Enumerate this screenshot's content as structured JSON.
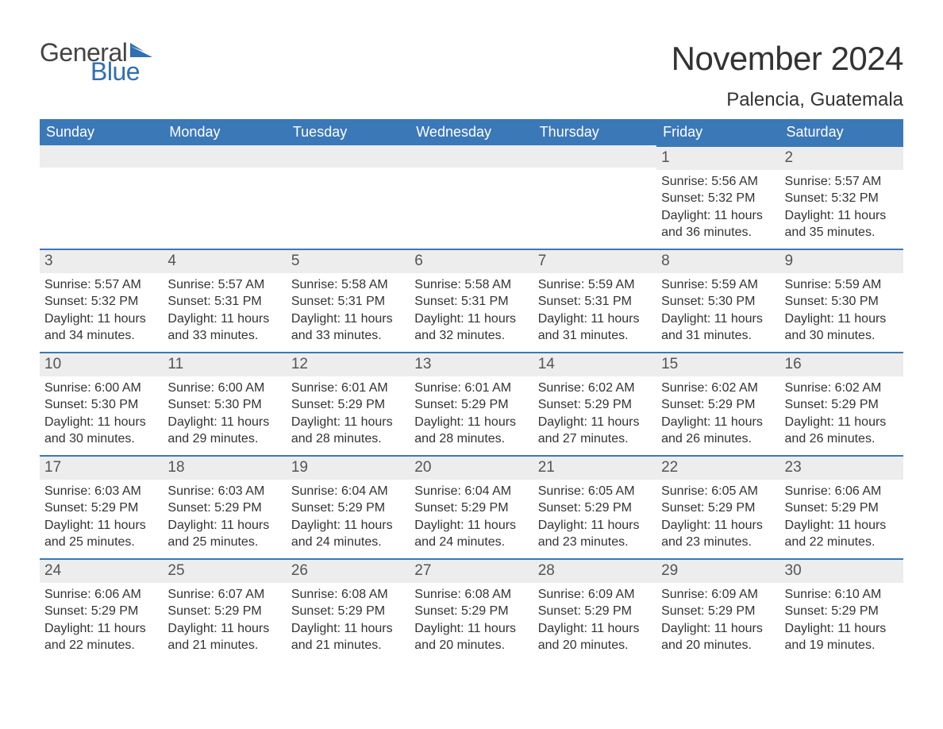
{
  "brand": {
    "word1": "General",
    "word2": "Blue",
    "accent_color": "#2f6fb3"
  },
  "title": "November 2024",
  "location": "Palencia, Guatemala",
  "colors": {
    "header_bg": "#3b78b8",
    "header_text": "#ffffff",
    "daybar_bg": "#ededed",
    "daybar_border": "#3b78b8",
    "text": "#333333"
  },
  "weekdays": [
    "Sunday",
    "Monday",
    "Tuesday",
    "Wednesday",
    "Thursday",
    "Friday",
    "Saturday"
  ],
  "weeks": [
    [
      null,
      null,
      null,
      null,
      null,
      {
        "n": "1",
        "sunrise": "Sunrise: 5:56 AM",
        "sunset": "Sunset: 5:32 PM",
        "dl1": "Daylight: 11 hours",
        "dl2": "and 36 minutes."
      },
      {
        "n": "2",
        "sunrise": "Sunrise: 5:57 AM",
        "sunset": "Sunset: 5:32 PM",
        "dl1": "Daylight: 11 hours",
        "dl2": "and 35 minutes."
      }
    ],
    [
      {
        "n": "3",
        "sunrise": "Sunrise: 5:57 AM",
        "sunset": "Sunset: 5:32 PM",
        "dl1": "Daylight: 11 hours",
        "dl2": "and 34 minutes."
      },
      {
        "n": "4",
        "sunrise": "Sunrise: 5:57 AM",
        "sunset": "Sunset: 5:31 PM",
        "dl1": "Daylight: 11 hours",
        "dl2": "and 33 minutes."
      },
      {
        "n": "5",
        "sunrise": "Sunrise: 5:58 AM",
        "sunset": "Sunset: 5:31 PM",
        "dl1": "Daylight: 11 hours",
        "dl2": "and 33 minutes."
      },
      {
        "n": "6",
        "sunrise": "Sunrise: 5:58 AM",
        "sunset": "Sunset: 5:31 PM",
        "dl1": "Daylight: 11 hours",
        "dl2": "and 32 minutes."
      },
      {
        "n": "7",
        "sunrise": "Sunrise: 5:59 AM",
        "sunset": "Sunset: 5:31 PM",
        "dl1": "Daylight: 11 hours",
        "dl2": "and 31 minutes."
      },
      {
        "n": "8",
        "sunrise": "Sunrise: 5:59 AM",
        "sunset": "Sunset: 5:30 PM",
        "dl1": "Daylight: 11 hours",
        "dl2": "and 31 minutes."
      },
      {
        "n": "9",
        "sunrise": "Sunrise: 5:59 AM",
        "sunset": "Sunset: 5:30 PM",
        "dl1": "Daylight: 11 hours",
        "dl2": "and 30 minutes."
      }
    ],
    [
      {
        "n": "10",
        "sunrise": "Sunrise: 6:00 AM",
        "sunset": "Sunset: 5:30 PM",
        "dl1": "Daylight: 11 hours",
        "dl2": "and 30 minutes."
      },
      {
        "n": "11",
        "sunrise": "Sunrise: 6:00 AM",
        "sunset": "Sunset: 5:30 PM",
        "dl1": "Daylight: 11 hours",
        "dl2": "and 29 minutes."
      },
      {
        "n": "12",
        "sunrise": "Sunrise: 6:01 AM",
        "sunset": "Sunset: 5:29 PM",
        "dl1": "Daylight: 11 hours",
        "dl2": "and 28 minutes."
      },
      {
        "n": "13",
        "sunrise": "Sunrise: 6:01 AM",
        "sunset": "Sunset: 5:29 PM",
        "dl1": "Daylight: 11 hours",
        "dl2": "and 28 minutes."
      },
      {
        "n": "14",
        "sunrise": "Sunrise: 6:02 AM",
        "sunset": "Sunset: 5:29 PM",
        "dl1": "Daylight: 11 hours",
        "dl2": "and 27 minutes."
      },
      {
        "n": "15",
        "sunrise": "Sunrise: 6:02 AM",
        "sunset": "Sunset: 5:29 PM",
        "dl1": "Daylight: 11 hours",
        "dl2": "and 26 minutes."
      },
      {
        "n": "16",
        "sunrise": "Sunrise: 6:02 AM",
        "sunset": "Sunset: 5:29 PM",
        "dl1": "Daylight: 11 hours",
        "dl2": "and 26 minutes."
      }
    ],
    [
      {
        "n": "17",
        "sunrise": "Sunrise: 6:03 AM",
        "sunset": "Sunset: 5:29 PM",
        "dl1": "Daylight: 11 hours",
        "dl2": "and 25 minutes."
      },
      {
        "n": "18",
        "sunrise": "Sunrise: 6:03 AM",
        "sunset": "Sunset: 5:29 PM",
        "dl1": "Daylight: 11 hours",
        "dl2": "and 25 minutes."
      },
      {
        "n": "19",
        "sunrise": "Sunrise: 6:04 AM",
        "sunset": "Sunset: 5:29 PM",
        "dl1": "Daylight: 11 hours",
        "dl2": "and 24 minutes."
      },
      {
        "n": "20",
        "sunrise": "Sunrise: 6:04 AM",
        "sunset": "Sunset: 5:29 PM",
        "dl1": "Daylight: 11 hours",
        "dl2": "and 24 minutes."
      },
      {
        "n": "21",
        "sunrise": "Sunrise: 6:05 AM",
        "sunset": "Sunset: 5:29 PM",
        "dl1": "Daylight: 11 hours",
        "dl2": "and 23 minutes."
      },
      {
        "n": "22",
        "sunrise": "Sunrise: 6:05 AM",
        "sunset": "Sunset: 5:29 PM",
        "dl1": "Daylight: 11 hours",
        "dl2": "and 23 minutes."
      },
      {
        "n": "23",
        "sunrise": "Sunrise: 6:06 AM",
        "sunset": "Sunset: 5:29 PM",
        "dl1": "Daylight: 11 hours",
        "dl2": "and 22 minutes."
      }
    ],
    [
      {
        "n": "24",
        "sunrise": "Sunrise: 6:06 AM",
        "sunset": "Sunset: 5:29 PM",
        "dl1": "Daylight: 11 hours",
        "dl2": "and 22 minutes."
      },
      {
        "n": "25",
        "sunrise": "Sunrise: 6:07 AM",
        "sunset": "Sunset: 5:29 PM",
        "dl1": "Daylight: 11 hours",
        "dl2": "and 21 minutes."
      },
      {
        "n": "26",
        "sunrise": "Sunrise: 6:08 AM",
        "sunset": "Sunset: 5:29 PM",
        "dl1": "Daylight: 11 hours",
        "dl2": "and 21 minutes."
      },
      {
        "n": "27",
        "sunrise": "Sunrise: 6:08 AM",
        "sunset": "Sunset: 5:29 PM",
        "dl1": "Daylight: 11 hours",
        "dl2": "and 20 minutes."
      },
      {
        "n": "28",
        "sunrise": "Sunrise: 6:09 AM",
        "sunset": "Sunset: 5:29 PM",
        "dl1": "Daylight: 11 hours",
        "dl2": "and 20 minutes."
      },
      {
        "n": "29",
        "sunrise": "Sunrise: 6:09 AM",
        "sunset": "Sunset: 5:29 PM",
        "dl1": "Daylight: 11 hours",
        "dl2": "and 20 minutes."
      },
      {
        "n": "30",
        "sunrise": "Sunrise: 6:10 AM",
        "sunset": "Sunset: 5:29 PM",
        "dl1": "Daylight: 11 hours",
        "dl2": "and 19 minutes."
      }
    ]
  ]
}
